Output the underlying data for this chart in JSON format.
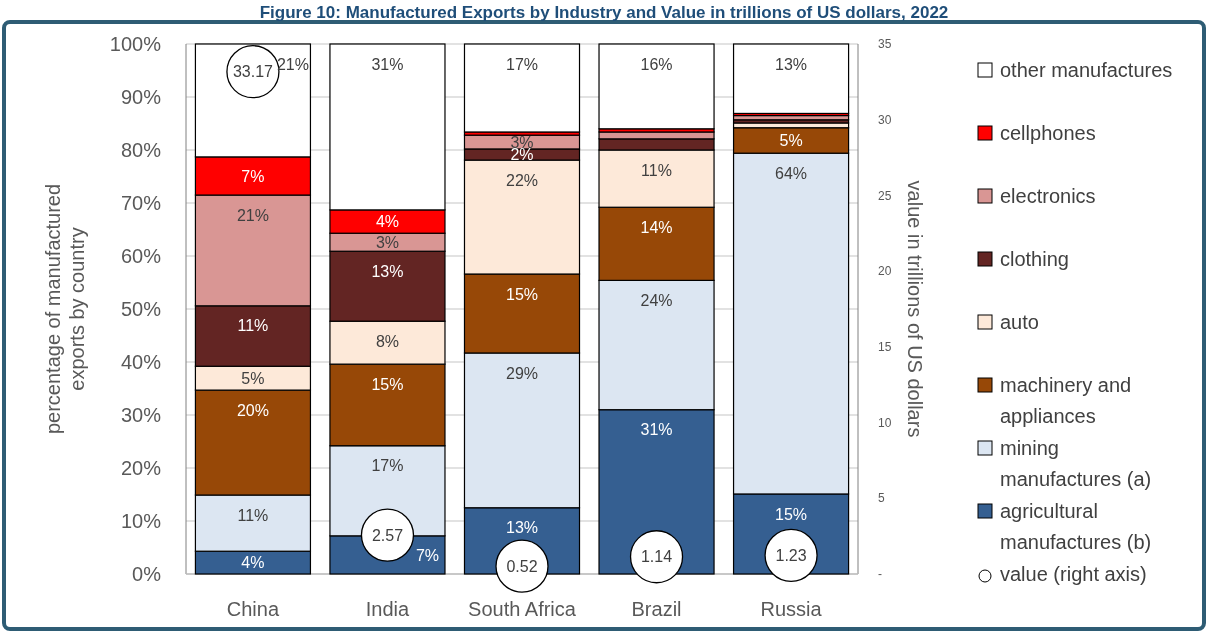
{
  "chart_data": {
    "type": "bar",
    "title": "Figure 10: Manufactured Exports by Industry and Value in trillions of US dollars, 2022",
    "ylabel": "percentage of manufactured exports by country",
    "y2label": "value in trillions of US dollars",
    "categories": [
      "China",
      "India",
      "South Africa",
      "Brazil",
      "Russia"
    ],
    "stacked": true,
    "grid": "y",
    "legend": "right",
    "ylim": [
      0,
      100
    ],
    "yticks": [
      {
        "value": 0,
        "label": "0%"
      },
      {
        "value": 10,
        "label": "10%"
      },
      {
        "value": 20,
        "label": "20%"
      },
      {
        "value": 30,
        "label": "30%"
      },
      {
        "value": 40,
        "label": "40%"
      },
      {
        "value": 50,
        "label": "50%"
      },
      {
        "value": 60,
        "label": "60%"
      },
      {
        "value": 70,
        "label": "70%"
      },
      {
        "value": 80,
        "label": "80%"
      },
      {
        "value": 90,
        "label": "90%"
      },
      {
        "value": 100,
        "label": "100%"
      }
    ],
    "y2lim": [
      0,
      35
    ],
    "y2ticks": [
      {
        "value": 0,
        "label": "-"
      },
      5,
      10,
      15,
      20,
      25,
      30,
      35
    ],
    "series": [
      {
        "name": "agricultural manufactures (b)",
        "color": "#355f91",
        "values": [
          4.3,
          7.2,
          12.5,
          31.0,
          15.1
        ],
        "value_labels": [
          "4%",
          "7%",
          "13%",
          "31%",
          "15%"
        ]
      },
      {
        "name": "mining manufactures (a)",
        "color": "#dce6f2",
        "values": [
          10.6,
          17.0,
          29.2,
          24.4,
          64.3
        ],
        "value_labels": [
          "11%",
          "17%",
          "29%",
          "24%",
          "64%"
        ]
      },
      {
        "name": "machinery and appliances",
        "color": "#974807",
        "values": [
          19.8,
          15.4,
          14.9,
          13.8,
          4.8
        ],
        "value_labels": [
          "20%",
          "15%",
          "15%",
          "14%",
          "5%"
        ]
      },
      {
        "name": "auto",
        "color": "#fde9d9",
        "values": [
          4.5,
          8.1,
          21.5,
          10.8,
          0.9
        ],
        "value_labels": [
          "5%",
          "8%",
          "22%",
          "11%",
          null
        ]
      },
      {
        "name": "clothing",
        "color": "#632523",
        "values": [
          11.4,
          13.2,
          2.1,
          2.1,
          0.6
        ],
        "value_labels": [
          "11%",
          "13%",
          "2%",
          null,
          null
        ]
      },
      {
        "name": "electronics",
        "color": "#d99694",
        "values": [
          20.9,
          3.4,
          2.6,
          1.3,
          0.8
        ],
        "value_labels": [
          "21%",
          "3%",
          "3%",
          null,
          null
        ]
      },
      {
        "name": "cellphones",
        "color": "#ff0000",
        "values": [
          7.2,
          4.4,
          0.6,
          0.6,
          0.4
        ],
        "value_labels": [
          "7%",
          "4%",
          null,
          null,
          null
        ]
      },
      {
        "name": "other manufactures",
        "color": "#ffffff",
        "values": [
          21.3,
          31.3,
          16.6,
          16.0,
          13.1
        ],
        "value_labels": [
          "21%",
          "31%",
          "17%",
          "16%",
          "13%"
        ]
      },
      {
        "name": "value (right axis)",
        "type": "scatter",
        "axis": "y2",
        "marker": "circle",
        "color": "#ffffff",
        "values": [
          33.17,
          2.57,
          0.52,
          1.14,
          1.23
        ],
        "value_labels": [
          "33.17",
          "2.57",
          "0.52",
          "1.14",
          "1.23"
        ]
      }
    ]
  }
}
